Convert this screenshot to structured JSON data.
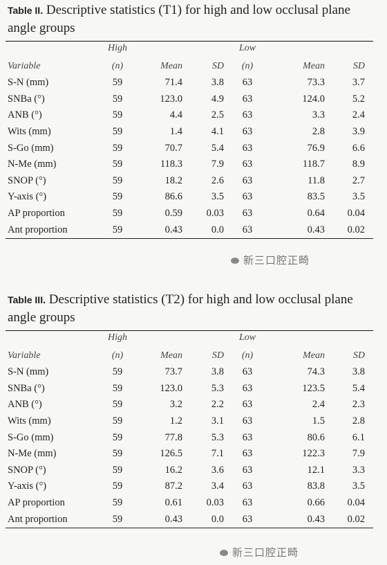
{
  "tables": [
    {
      "label": "Table II.",
      "caption": "Descriptive statistics (T1) for high and low occlusal plane angle groups",
      "header": {
        "group_high": "High",
        "group_low": "Low",
        "variable": "Variable",
        "n": "(n)",
        "mean": "Mean",
        "sd": "SD",
        "n_low": "(n)",
        "mean_low": "Mean",
        "sd_low": "SD"
      },
      "rows": [
        {
          "variable": "S-N (mm)",
          "high_n": "59",
          "high_mean": "71.4",
          "high_sd": "3.8",
          "low_n": "63",
          "low_mean": "73.3",
          "low_sd": "3.7"
        },
        {
          "variable": "SNBa (°)",
          "high_n": "59",
          "high_mean": "123.0",
          "high_sd": "4.9",
          "low_n": "63",
          "low_mean": "124.0",
          "low_sd": "5.2"
        },
        {
          "variable": "ANB (°)",
          "high_n": "59",
          "high_mean": "4.4",
          "high_sd": "2.5",
          "low_n": "63",
          "low_mean": "3.3",
          "low_sd": "2.4"
        },
        {
          "variable": "Wits (mm)",
          "high_n": "59",
          "high_mean": "1.4",
          "high_sd": "4.1",
          "low_n": "63",
          "low_mean": "2.8",
          "low_sd": "3.9"
        },
        {
          "variable": "S-Go (mm)",
          "high_n": "59",
          "high_mean": "70.7",
          "high_sd": "5.4",
          "low_n": "63",
          "low_mean": "76.9",
          "low_sd": "6.6"
        },
        {
          "variable": "N-Me (mm)",
          "high_n": "59",
          "high_mean": "118.3",
          "high_sd": "7.9",
          "low_n": "63",
          "low_mean": "118.7",
          "low_sd": "8.9"
        },
        {
          "variable": "SNOP (°)",
          "high_n": "59",
          "high_mean": "18.2",
          "high_sd": "2.6",
          "low_n": "63",
          "low_mean": "11.8",
          "low_sd": "2.7"
        },
        {
          "variable": "Y-axis (°)",
          "high_n": "59",
          "high_mean": "86.6",
          "high_sd": "3.5",
          "low_n": "63",
          "low_mean": "83.5",
          "low_sd": "3.5"
        },
        {
          "variable": "AP proportion",
          "high_n": "59",
          "high_mean": "0.59",
          "high_sd": "0.03",
          "low_n": "63",
          "low_mean": "0.64",
          "low_sd": "0.04"
        },
        {
          "variable": "Ant proportion",
          "high_n": "59",
          "high_mean": "0.43",
          "high_sd": "0.0",
          "low_n": "63",
          "low_mean": "0.43",
          "low_sd": "0.02"
        }
      ],
      "watermark": "新三口腔正畸"
    },
    {
      "label": "Table III.",
      "caption": "Descriptive statistics (T2) for high and low occlusal plane angle groups",
      "header": {
        "group_high": "High",
        "group_low": "Low",
        "variable": "Variable",
        "n": "(n)",
        "mean": "Mean",
        "sd": "SD",
        "n_low": "(n)",
        "mean_low": "Mean",
        "sd_low": "SD"
      },
      "rows": [
        {
          "variable": "S-N (mm)",
          "high_n": "59",
          "high_mean": "73.7",
          "high_sd": "3.8",
          "low_n": "63",
          "low_mean": "74.3",
          "low_sd": "3.8"
        },
        {
          "variable": "SNBa (°)",
          "high_n": "59",
          "high_mean": "123.0",
          "high_sd": "5.3",
          "low_n": "63",
          "low_mean": "123.5",
          "low_sd": "5.4"
        },
        {
          "variable": "ANB (°)",
          "high_n": "59",
          "high_mean": "3.2",
          "high_sd": "2.2",
          "low_n": "63",
          "low_mean": "2.4",
          "low_sd": "2.3"
        },
        {
          "variable": "Wits (mm)",
          "high_n": "59",
          "high_mean": "1.2",
          "high_sd": "3.1",
          "low_n": "63",
          "low_mean": "1.5",
          "low_sd": "2.8"
        },
        {
          "variable": "S-Go (mm)",
          "high_n": "59",
          "high_mean": "77.8",
          "high_sd": "5.3",
          "low_n": "63",
          "low_mean": "80.6",
          "low_sd": "6.1"
        },
        {
          "variable": "N-Me (mm)",
          "high_n": "59",
          "high_mean": "126.5",
          "high_sd": "7.1",
          "low_n": "63",
          "low_mean": "122.3",
          "low_sd": "7.9"
        },
        {
          "variable": "SNOP (°)",
          "high_n": "59",
          "high_mean": "16.2",
          "high_sd": "3.6",
          "low_n": "63",
          "low_mean": "12.1",
          "low_sd": "3.3"
        },
        {
          "variable": "Y-axis (°)",
          "high_n": "59",
          "high_mean": "87.2",
          "high_sd": "3.4",
          "low_n": "63",
          "low_mean": "83.8",
          "low_sd": "3.5"
        },
        {
          "variable": "AP proportion",
          "high_n": "59",
          "high_mean": "0.61",
          "high_sd": "0.03",
          "low_n": "63",
          "low_mean": "0.66",
          "low_sd": "0.04"
        },
        {
          "variable": "Ant proportion",
          "high_n": "59",
          "high_mean": "0.43",
          "high_sd": "0.0",
          "low_n": "63",
          "low_mean": "0.43",
          "low_sd": "0.02"
        }
      ],
      "watermark": "新三口腔正畸"
    }
  ]
}
